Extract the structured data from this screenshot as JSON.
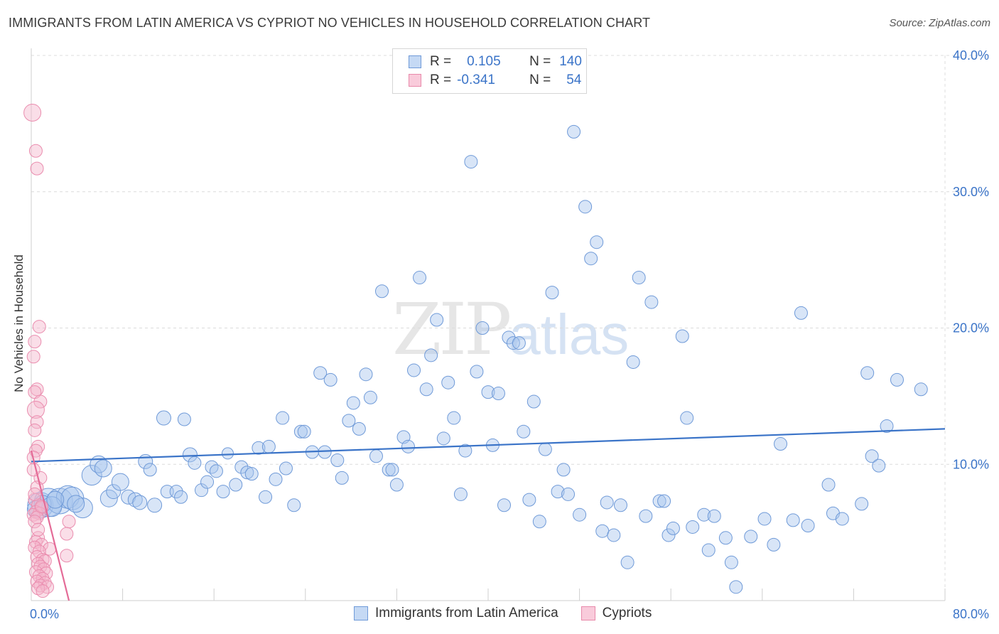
{
  "title": "IMMIGRANTS FROM LATIN AMERICA VS CYPRIOT NO VEHICLES IN HOUSEHOLD CORRELATION CHART",
  "source": "Source: ZipAtlas.com",
  "watermark": {
    "zip": "ZIP",
    "atlas": "atlas"
  },
  "legend": {
    "blue": {
      "r_label": "R =",
      "r_value": "0.105",
      "n_label": "N =",
      "n_value": "140"
    },
    "pink": {
      "r_label": "R =",
      "r_value": "-0.341",
      "n_label": "N =",
      "n_value": "54"
    }
  },
  "colors": {
    "blue": "#3b74c8",
    "blue_fill": "#a9c6ee",
    "pink": "#e46b97",
    "pink_fill": "#f4b6cb"
  },
  "chart_data": {
    "type": "scatter",
    "title": "IMMIGRANTS FROM LATIN AMERICA VS CYPRIOT NO VEHICLES IN HOUSEHOLD CORRELATION CHART",
    "xlabel": "",
    "ylabel": "No Vehicles in Household",
    "xlim": [
      0,
      80
    ],
    "ylim": [
      0,
      40
    ],
    "x_tick_labels": [
      "0.0%",
      "80.0%"
    ],
    "y_tick_labels": [
      "10.0%",
      "20.0%",
      "30.0%",
      "40.0%"
    ],
    "y_ticks": [
      10,
      20,
      30,
      40
    ],
    "grid": true,
    "legend_position": "top-center",
    "series": [
      {
        "name": "Immigrants from Latin America",
        "color": "#3b74c8",
        "trend": [
          [
            0,
            10.2
          ],
          [
            80,
            12.6
          ]
        ],
        "points": [
          [
            0.8,
            7.0,
            18
          ],
          [
            1.5,
            7.2,
            20
          ],
          [
            2.5,
            7.3,
            18
          ],
          [
            3.2,
            7.6,
            16
          ],
          [
            3.6,
            7.5,
            16
          ],
          [
            4.5,
            6.8,
            14
          ],
          [
            5.3,
            9.2,
            14
          ],
          [
            5.9,
            10.0,
            12
          ],
          [
            6.3,
            9.7,
            12
          ],
          [
            6.8,
            7.5,
            12
          ],
          [
            7.2,
            8.0,
            10
          ],
          [
            7.8,
            8.7,
            12
          ],
          [
            8.5,
            7.6,
            10
          ],
          [
            9.1,
            7.4,
            10
          ],
          [
            9.5,
            7.2,
            10
          ],
          [
            10.0,
            10.2,
            10
          ],
          [
            10.4,
            9.6,
            9
          ],
          [
            10.8,
            7.0,
            10
          ],
          [
            11.6,
            13.4,
            10
          ],
          [
            11.9,
            8.0,
            9
          ],
          [
            12.7,
            8.0,
            9
          ],
          [
            13.1,
            7.6,
            9
          ],
          [
            13.4,
            13.3,
            9
          ],
          [
            13.9,
            10.7,
            10
          ],
          [
            14.3,
            10.1,
            9
          ],
          [
            14.9,
            8.1,
            9
          ],
          [
            15.4,
            8.7,
            9
          ],
          [
            15.8,
            9.8,
            9
          ],
          [
            16.2,
            9.5,
            9
          ],
          [
            16.8,
            8.0,
            9
          ],
          [
            17.2,
            10.8,
            8
          ],
          [
            17.9,
            8.5,
            9
          ],
          [
            18.4,
            9.8,
            9
          ],
          [
            18.9,
            9.4,
            9
          ],
          [
            19.3,
            9.3,
            9
          ],
          [
            19.9,
            11.2,
            9
          ],
          [
            20.5,
            7.6,
            9
          ],
          [
            20.8,
            11.3,
            9
          ],
          [
            21.4,
            8.9,
            9
          ],
          [
            22.0,
            13.4,
            9
          ],
          [
            22.3,
            9.7,
            9
          ],
          [
            23.0,
            7.0,
            9
          ],
          [
            23.6,
            12.4,
            9
          ],
          [
            23.9,
            12.4,
            9
          ],
          [
            24.6,
            10.9,
            9
          ],
          [
            25.3,
            16.7,
            9
          ],
          [
            25.7,
            10.9,
            9
          ],
          [
            26.2,
            16.2,
            9
          ],
          [
            26.8,
            10.3,
            9
          ],
          [
            27.2,
            9.0,
            9
          ],
          [
            27.8,
            13.2,
            9
          ],
          [
            28.2,
            14.5,
            9
          ],
          [
            28.7,
            12.6,
            9
          ],
          [
            29.3,
            16.6,
            9
          ],
          [
            29.7,
            14.9,
            9
          ],
          [
            30.2,
            10.6,
            9
          ],
          [
            30.7,
            22.7,
            9
          ],
          [
            31.3,
            9.6,
            9
          ],
          [
            31.6,
            9.6,
            9
          ],
          [
            32.0,
            8.5,
            9
          ],
          [
            32.6,
            12.0,
            9
          ],
          [
            33.0,
            11.3,
            9
          ],
          [
            33.5,
            16.9,
            9
          ],
          [
            34.0,
            23.7,
            9
          ],
          [
            34.6,
            15.5,
            9
          ],
          [
            35.0,
            18.0,
            9
          ],
          [
            35.5,
            20.6,
            9
          ],
          [
            36.1,
            11.9,
            9
          ],
          [
            36.5,
            16.0,
            9
          ],
          [
            37.0,
            13.4,
            9
          ],
          [
            37.6,
            7.8,
            9
          ],
          [
            38.0,
            11.0,
            9
          ],
          [
            38.5,
            32.2,
            9
          ],
          [
            39.0,
            16.8,
            9
          ],
          [
            39.5,
            20.0,
            9
          ],
          [
            40.0,
            15.3,
            9
          ],
          [
            40.4,
            11.4,
            9
          ],
          [
            40.9,
            15.2,
            9
          ],
          [
            41.4,
            7.0,
            9
          ],
          [
            41.8,
            19.3,
            9
          ],
          [
            42.2,
            18.9,
            9
          ],
          [
            42.7,
            18.9,
            9
          ],
          [
            43.1,
            12.4,
            9
          ],
          [
            43.6,
            7.4,
            9
          ],
          [
            44.0,
            14.6,
            9
          ],
          [
            44.5,
            5.8,
            9
          ],
          [
            45.0,
            11.1,
            9
          ],
          [
            45.6,
            22.6,
            9
          ],
          [
            46.1,
            8.0,
            9
          ],
          [
            46.6,
            9.6,
            9
          ],
          [
            47.0,
            7.8,
            9
          ],
          [
            47.5,
            34.4,
            9
          ],
          [
            48.0,
            6.3,
            9
          ],
          [
            48.5,
            28.9,
            9
          ],
          [
            49.0,
            25.1,
            9
          ],
          [
            49.5,
            26.3,
            9
          ],
          [
            50.0,
            5.1,
            9
          ],
          [
            50.4,
            7.2,
            9
          ],
          [
            51.0,
            4.8,
            9
          ],
          [
            51.6,
            7.0,
            9
          ],
          [
            52.2,
            2.8,
            9
          ],
          [
            52.7,
            17.5,
            9
          ],
          [
            53.2,
            23.7,
            9
          ],
          [
            53.8,
            6.2,
            9
          ],
          [
            54.3,
            21.9,
            9
          ],
          [
            55.0,
            7.3,
            9
          ],
          [
            55.4,
            7.3,
            9
          ],
          [
            55.8,
            4.8,
            9
          ],
          [
            56.2,
            5.3,
            9
          ],
          [
            57.0,
            19.4,
            9
          ],
          [
            57.4,
            13.4,
            9
          ],
          [
            57.9,
            5.4,
            9
          ],
          [
            58.9,
            6.3,
            9
          ],
          [
            59.3,
            3.7,
            9
          ],
          [
            59.8,
            6.2,
            9
          ],
          [
            60.8,
            4.6,
            9
          ],
          [
            61.3,
            2.8,
            9
          ],
          [
            61.7,
            1.0,
            9
          ],
          [
            63.0,
            4.7,
            9
          ],
          [
            64.2,
            6.0,
            9
          ],
          [
            65.0,
            4.1,
            9
          ],
          [
            65.6,
            11.5,
            9
          ],
          [
            66.7,
            5.9,
            9
          ],
          [
            67.4,
            21.1,
            9
          ],
          [
            68.0,
            5.5,
            9
          ],
          [
            69.8,
            8.5,
            9
          ],
          [
            70.2,
            6.4,
            9
          ],
          [
            71.0,
            6.0,
            9
          ],
          [
            72.7,
            7.1,
            9
          ],
          [
            73.2,
            16.7,
            9
          ],
          [
            73.6,
            10.6,
            9
          ],
          [
            74.2,
            9.9,
            9
          ],
          [
            74.9,
            12.8,
            9
          ],
          [
            75.8,
            16.2,
            9
          ],
          [
            77.9,
            15.5,
            9
          ],
          [
            0.4,
            6.7,
            12
          ],
          [
            1.0,
            7.1,
            12
          ],
          [
            1.8,
            6.9,
            14
          ],
          [
            2.1,
            7.4,
            12
          ],
          [
            3.9,
            7.1,
            12
          ]
        ]
      },
      {
        "name": "Cypriots",
        "color": "#e46b97",
        "trend": [
          [
            0,
            11.0
          ],
          [
            3.3,
            0.0
          ]
        ],
        "points": [
          [
            0.1,
            35.8,
            12
          ],
          [
            0.4,
            33.0,
            9
          ],
          [
            0.5,
            31.7,
            9
          ],
          [
            0.7,
            20.1,
            9
          ],
          [
            0.3,
            19.0,
            9
          ],
          [
            0.2,
            17.9,
            9
          ],
          [
            0.5,
            15.5,
            9
          ],
          [
            0.3,
            15.3,
            9
          ],
          [
            0.8,
            14.6,
            9
          ],
          [
            0.4,
            14.0,
            12
          ],
          [
            0.5,
            13.1,
            9
          ],
          [
            0.3,
            12.5,
            9
          ],
          [
            0.6,
            11.3,
            9
          ],
          [
            0.4,
            11.0,
            9
          ],
          [
            0.2,
            10.5,
            9
          ],
          [
            0.8,
            9.0,
            9
          ],
          [
            0.5,
            8.3,
            9
          ],
          [
            0.3,
            7.4,
            9
          ],
          [
            0.6,
            7.0,
            9
          ],
          [
            0.9,
            6.8,
            9
          ],
          [
            0.4,
            6.5,
            9
          ],
          [
            0.7,
            6.4,
            9
          ],
          [
            0.2,
            6.3,
            9
          ],
          [
            0.5,
            6.1,
            9
          ],
          [
            0.3,
            5.8,
            9
          ],
          [
            3.3,
            5.8,
            9
          ],
          [
            3.1,
            4.9,
            9
          ],
          [
            0.6,
            4.6,
            9
          ],
          [
            0.4,
            4.3,
            9
          ],
          [
            0.9,
            4.1,
            9
          ],
          [
            0.3,
            3.9,
            9
          ],
          [
            1.6,
            3.8,
            9
          ],
          [
            0.7,
            3.6,
            9
          ],
          [
            3.1,
            3.3,
            9
          ],
          [
            0.5,
            3.2,
            9
          ],
          [
            1.0,
            3.0,
            9
          ],
          [
            1.2,
            2.9,
            9
          ],
          [
            0.6,
            2.7,
            9
          ],
          [
            0.8,
            2.5,
            9
          ],
          [
            1.1,
            2.3,
            9
          ],
          [
            0.4,
            2.1,
            9
          ],
          [
            1.3,
            2.0,
            9
          ],
          [
            0.7,
            1.8,
            9
          ],
          [
            1.0,
            1.6,
            9
          ],
          [
            0.5,
            1.4,
            9
          ],
          [
            1.2,
            1.3,
            9
          ],
          [
            0.8,
            1.1,
            9
          ],
          [
            1.4,
            1.0,
            9
          ],
          [
            0.6,
            0.9,
            9
          ],
          [
            1.0,
            0.7,
            9
          ],
          [
            0.3,
            7.8,
            9
          ],
          [
            0.6,
            5.2,
            9
          ],
          [
            0.9,
            6.9,
            9
          ],
          [
            0.2,
            9.6,
            9
          ]
        ]
      }
    ]
  },
  "bottom_legend": [
    "Immigrants from Latin America",
    "Cypriots"
  ]
}
